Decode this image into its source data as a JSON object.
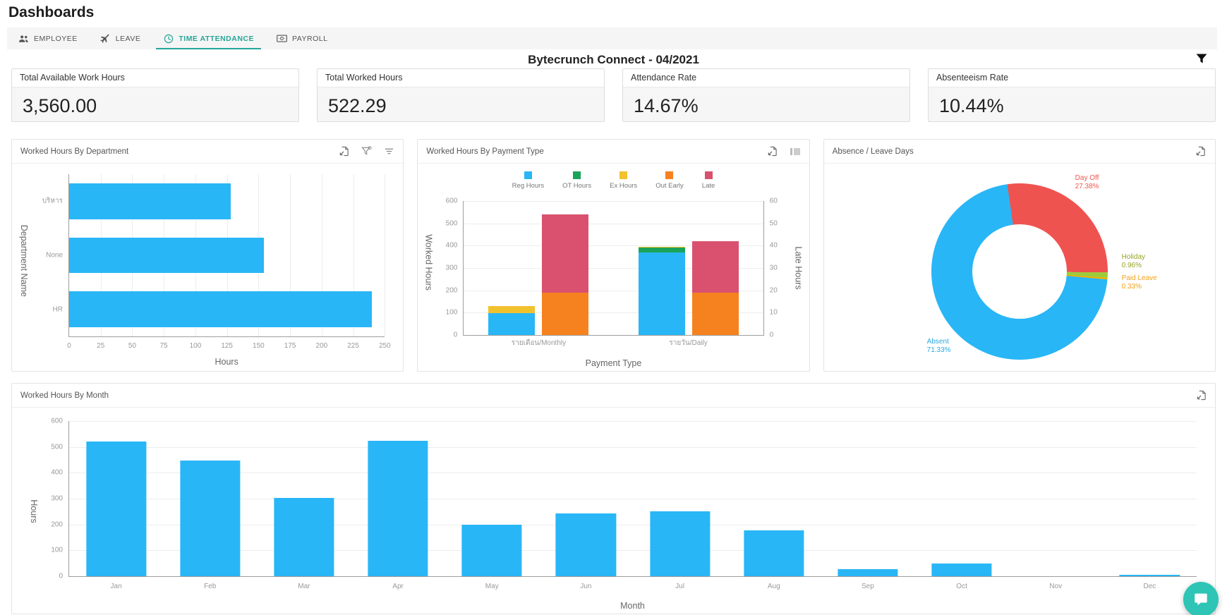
{
  "page": {
    "title": "Dashboards"
  },
  "tabs": [
    {
      "label": "EMPLOYEE",
      "icon": "people-icon",
      "active": false
    },
    {
      "label": "LEAVE",
      "icon": "plane-icon",
      "active": false
    },
    {
      "label": "TIME ATTENDANCE",
      "icon": "clock-icon",
      "active": true
    },
    {
      "label": "PAYROLL",
      "icon": "banknote-icon",
      "active": false
    }
  ],
  "header": {
    "title": "Bytecrunch Connect - 04/2021",
    "filter_icon": "funnel-icon"
  },
  "kpis": [
    {
      "label": "Total Available Work Hours",
      "value": "3,560.00"
    },
    {
      "label": "Total Worked Hours",
      "value": "522.29"
    },
    {
      "label": "Attendance Rate",
      "value": "14.67%"
    },
    {
      "label": "Absenteeism Rate",
      "value": "10.44%"
    }
  ],
  "colors": {
    "accent_teal": "#26a69a",
    "bar_blue": "#29b6f6",
    "green": "#1aa45a",
    "yellow": "#f2c12e",
    "orange": "#f6821f",
    "pink": "#d9516e",
    "donut_red": "#ef5350",
    "donut_green": "#9ccc3c",
    "donut_yellow": "#f0b400",
    "chat_teal": "#2ec4b6"
  },
  "chart_data": [
    {
      "id": "dept",
      "type": "bar",
      "orientation": "horizontal",
      "title": "Worked Hours By Department",
      "icons": [
        "export-icon",
        "filter-icon",
        "slicer-icon"
      ],
      "categories": [
        "บริหาร",
        "None",
        "HR"
      ],
      "values": [
        128,
        154,
        240
      ],
      "xlabel": "Hours",
      "ylabel": "Department Name",
      "xlim": [
        0,
        250
      ],
      "xticks": [
        0,
        25,
        50,
        75,
        100,
        125,
        150,
        175,
        200,
        225,
        250
      ],
      "grid": true,
      "bar_color": "#29b6f6"
    },
    {
      "id": "payment",
      "type": "bar",
      "stacked": true,
      "title": "Worked Hours By Payment Type",
      "icons": [
        "export-icon",
        "legend-toggle-icon"
      ],
      "categories": [
        "รายเดือน/Monthly",
        "รายวัน/Daily"
      ],
      "series": [
        {
          "name": "Reg Hours",
          "color": "#29b6f6",
          "axis": "left",
          "values": [
            98,
            370
          ]
        },
        {
          "name": "OT Hours",
          "color": "#1aa45a",
          "axis": "left",
          "values": [
            0,
            22
          ]
        },
        {
          "name": "Ex Hours",
          "color": "#f2c12e",
          "axis": "left",
          "values": [
            32,
            4
          ]
        },
        {
          "name": "Out Early",
          "color": "#f6821f",
          "axis": "right",
          "values": [
            19,
            19
          ]
        },
        {
          "name": "Late",
          "color": "#d9516e",
          "axis": "right",
          "values": [
            35,
            23
          ]
        }
      ],
      "xlabel": "Payment Type",
      "ylabel_left": "Worked Hours",
      "ylabel_right": "Late Hours",
      "ylim_left": [
        0,
        600
      ],
      "yticks_left": [
        0,
        100,
        200,
        300,
        400,
        500,
        600
      ],
      "ylim_right": [
        0,
        60
      ],
      "yticks_right": [
        0,
        10,
        20,
        30,
        40,
        50,
        60
      ],
      "grid": true,
      "legend_position": "top"
    },
    {
      "id": "absence",
      "type": "pie",
      "title": "Absence / Leave Days",
      "icons": [
        "export-icon"
      ],
      "donut": true,
      "slices": [
        {
          "label": "Day Off",
          "pct": "27.38",
          "color": "#ef5350",
          "label_color": "#f2564d"
        },
        {
          "label": "Holiday",
          "pct": "0.96",
          "color": "#9ccc3c",
          "label_color": "#97a325"
        },
        {
          "label": "Paid Leave",
          "pct": "0.33",
          "color": "#f0b400",
          "label_color": "#f0a21b"
        },
        {
          "label": "Absent",
          "pct": "71.33",
          "color": "#29b6f6",
          "label_color": "#2aa9e0"
        }
      ],
      "start_angle_deg": -8
    },
    {
      "id": "month",
      "type": "bar",
      "title": "Worked Hours By Month",
      "icons": [
        "export-icon"
      ],
      "categories": [
        "Jan",
        "Feb",
        "Mar",
        "Apr",
        "May",
        "Jun",
        "Jul",
        "Aug",
        "Sep",
        "Oct",
        "Nov",
        "Dec"
      ],
      "values": [
        522,
        448,
        302,
        523,
        198,
        242,
        250,
        178,
        28,
        50,
        0,
        5
      ],
      "xlabel": "Month",
      "ylabel": "Hours",
      "ylim": [
        0,
        600
      ],
      "yticks": [
        0,
        100,
        200,
        300,
        400,
        500,
        600
      ],
      "grid": true,
      "bar_color": "#29b6f6"
    }
  ],
  "chat_widget": {
    "icon": "chat-bubble-icon"
  }
}
